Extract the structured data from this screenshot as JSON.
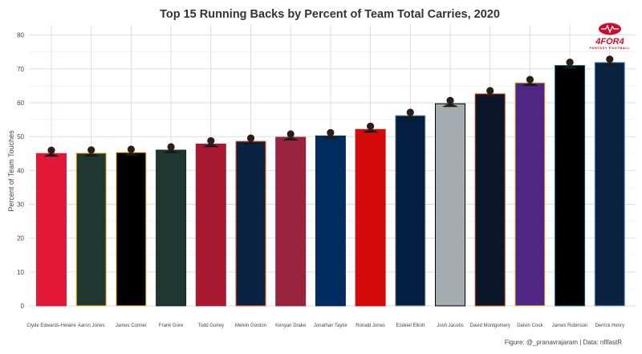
{
  "chart_data": {
    "type": "bar",
    "title": "Top 15 Running Backs by Percent of Team Total Carries, 2020",
    "ylabel": "Percent of Team Touches",
    "xlabel": "",
    "ylim": [
      0,
      83
    ],
    "yticks": [
      0,
      10,
      20,
      30,
      40,
      50,
      60,
      70,
      80
    ],
    "grid": true,
    "legend": "none",
    "caption": "Figure: @_pranavrajaram | Data: nflfastR",
    "logo": {
      "main": "4FOR4",
      "sub": "FANTASY FOOTBALL"
    },
    "bars": [
      {
        "category": "Clyde Edwards-Helaire",
        "value": 45.0,
        "fill": "#e31837",
        "outline": "#e31837"
      },
      {
        "category": "Aaron Jones",
        "value": 45.1,
        "fill": "#203731",
        "outline": "#ffb612"
      },
      {
        "category": "James Conner",
        "value": 45.3,
        "fill": "#000000",
        "outline": "#ffb612"
      },
      {
        "category": "Frank Gore",
        "value": 46.0,
        "fill": "#203731",
        "outline": "#0b2b22"
      },
      {
        "category": "Todd Gurley",
        "value": 47.8,
        "fill": "#a71930",
        "outline": "#a71930"
      },
      {
        "category": "Melvin Gordon",
        "value": 48.6,
        "fill": "#0a2343",
        "outline": "#fb4f14"
      },
      {
        "category": "Kenyan Drake",
        "value": 49.8,
        "fill": "#97233f",
        "outline": "#97233f"
      },
      {
        "category": "Jonathan Taylor",
        "value": 50.2,
        "fill": "#002c5f",
        "outline": "#002c5f"
      },
      {
        "category": "Ronald Jones",
        "value": 52.1,
        "fill": "#d50a0a",
        "outline": "#d50a0a"
      },
      {
        "category": "Ezekiel Elliott",
        "value": 56.2,
        "fill": "#041e42",
        "outline": "#869397"
      },
      {
        "category": "Josh Jacobs",
        "value": 59.7,
        "fill": "#a5acaf",
        "outline": "#000000"
      },
      {
        "category": "David Montgomery",
        "value": 62.6,
        "fill": "#0b162a",
        "outline": "#c83803"
      },
      {
        "category": "Dalvin Cook",
        "value": 65.9,
        "fill": "#4f2683",
        "outline": "#ffc62f"
      },
      {
        "category": "James Robinson",
        "value": 71.0,
        "fill": "#000000",
        "outline": "#006778"
      },
      {
        "category": "Derrick Henry",
        "value": 71.9,
        "fill": "#0c2340",
        "outline": "#4b92db"
      }
    ]
  }
}
